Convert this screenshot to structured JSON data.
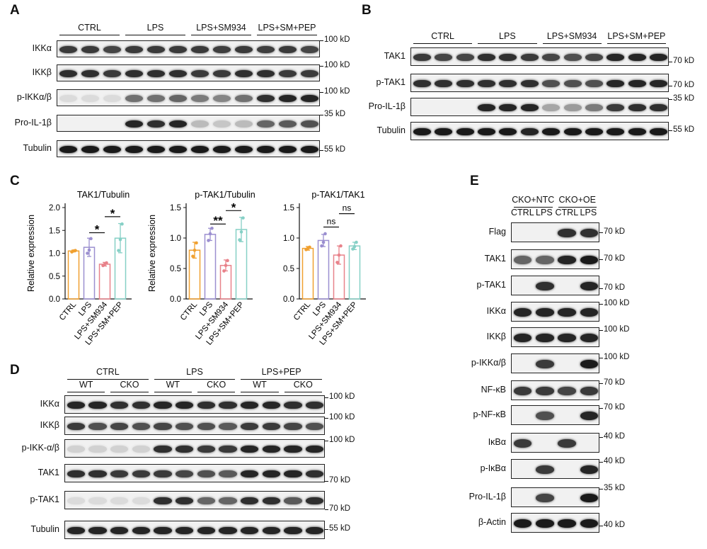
{
  "panels": {
    "A": {
      "letter": "A",
      "groups": [
        "CTRL",
        "LPS",
        "LPS+SM934",
        "LPS+SM+PEP"
      ],
      "rows": [
        {
          "label": "IKKα",
          "marker": "100 kD",
          "intensity": [
            0.8,
            0.8,
            0.75,
            0.8,
            0.8,
            0.8,
            0.8,
            0.78,
            0.8,
            0.78,
            0.8,
            0.75
          ]
        },
        {
          "label": "IKKβ",
          "marker": "100 kD",
          "intensity": [
            0.85,
            0.85,
            0.8,
            0.85,
            0.85,
            0.85,
            0.8,
            0.8,
            0.85,
            0.85,
            0.8,
            0.8
          ]
        },
        {
          "label": "p-IKKα/β",
          "marker": "100 kD",
          "intensity": [
            0.05,
            0.05,
            0.05,
            0.55,
            0.55,
            0.6,
            0.5,
            0.45,
            0.55,
            0.85,
            0.9,
            0.9
          ]
        },
        {
          "label": "Pro-IL-1β",
          "marker": "35 kD",
          "intensity": [
            0.0,
            0.0,
            0.0,
            0.9,
            0.85,
            0.9,
            0.2,
            0.15,
            0.2,
            0.6,
            0.65,
            0.7
          ]
        },
        {
          "label": "Tubulin",
          "marker": "55 kD",
          "intensity": [
            0.95,
            0.95,
            0.95,
            0.95,
            0.95,
            0.95,
            0.95,
            0.95,
            0.95,
            0.95,
            0.95,
            0.95
          ]
        }
      ]
    },
    "B": {
      "letter": "B",
      "groups": [
        "CTRL",
        "LPS",
        "LPS+SM934",
        "LPS+SM+PEP"
      ],
      "rows": [
        {
          "label": "TAK1",
          "marker": "70 kD",
          "intensity": [
            0.8,
            0.75,
            0.75,
            0.85,
            0.85,
            0.8,
            0.75,
            0.7,
            0.75,
            0.9,
            0.9,
            0.9
          ]
        },
        {
          "label": "p-TAK1",
          "marker": "70 kD",
          "intensity": [
            0.85,
            0.85,
            0.85,
            0.85,
            0.85,
            0.85,
            0.7,
            0.7,
            0.7,
            0.9,
            0.9,
            0.9
          ]
        },
        {
          "label": "Pro-IL-1β",
          "marker": "35 kD",
          "intensity": [
            0.0,
            0.0,
            0.0,
            0.9,
            0.9,
            0.9,
            0.3,
            0.35,
            0.5,
            0.8,
            0.85,
            0.85
          ]
        },
        {
          "label": "Tubulin",
          "marker": "55 kD",
          "intensity": [
            0.95,
            0.95,
            0.95,
            0.95,
            0.95,
            0.9,
            0.95,
            0.95,
            0.95,
            0.95,
            0.95,
            0.95
          ]
        }
      ]
    },
    "C": {
      "letter": "C",
      "charts": [
        {
          "title": "TAK1/Tubulin",
          "ylabel": "Relative expression",
          "ylim": [
            0,
            2.0
          ],
          "yticks": [
            "0.0",
            "0.5",
            "1.0",
            "1.5",
            "2.0"
          ],
          "categories": [
            "CTRL",
            "LPS",
            "LPS+SM934",
            "LPS+SM+PEP"
          ],
          "values": [
            1.05,
            1.13,
            0.76,
            1.33
          ],
          "errors": [
            0.02,
            0.2,
            0.04,
            0.32
          ],
          "points": [
            [
              1.03,
              1.05,
              1.06
            ],
            [
              1.0,
              1.07,
              1.32
            ],
            [
              0.73,
              0.76,
              0.79
            ],
            [
              1.06,
              1.3,
              1.64
            ]
          ],
          "sig": [
            {
              "from": 1,
              "to": 2,
              "label": "*",
              "y": 1.45
            },
            {
              "from": 2,
              "to": 3,
              "label": "*",
              "y": 1.8
            }
          ]
        },
        {
          "title": "p-TAK1/Tubulin",
          "ylabel": "Relative expression",
          "ylim": [
            0,
            1.5
          ],
          "yticks": [
            "0.0",
            "0.5",
            "1.0",
            "1.5"
          ],
          "categories": [
            "CTRL",
            "LPS",
            "LPS+SM934",
            "LPS+SM+PEP"
          ],
          "values": [
            0.8,
            1.06,
            0.55,
            1.14
          ],
          "errors": [
            0.13,
            0.1,
            0.09,
            0.2
          ],
          "points": [
            [
              0.7,
              0.8,
              0.92
            ],
            [
              0.96,
              1.07,
              1.16
            ],
            [
              0.46,
              0.55,
              0.63
            ],
            [
              0.97,
              1.1,
              1.33
            ]
          ],
          "sig": [
            {
              "from": 1,
              "to": 2,
              "label": "**",
              "y": 1.23
            },
            {
              "from": 2,
              "to": 3,
              "label": "*",
              "y": 1.45
            }
          ]
        },
        {
          "title": "p-TAK1/TAK1",
          "ylabel": "",
          "ylim": [
            0,
            1.5
          ],
          "yticks": [
            "0.0",
            "0.5",
            "1.0",
            "1.5"
          ],
          "categories": [
            "CTRL",
            "LPS",
            "LPS+SM934",
            "LPS+SM+PEP"
          ],
          "values": [
            0.83,
            0.96,
            0.72,
            0.87
          ],
          "errors": [
            0.03,
            0.1,
            0.15,
            0.06
          ],
          "points": [
            [
              0.81,
              0.83,
              0.85
            ],
            [
              0.87,
              0.93,
              1.07
            ],
            [
              0.6,
              0.72,
              0.87
            ],
            [
              0.82,
              0.86,
              0.93
            ]
          ],
          "sig": [
            {
              "from": 1,
              "to": 2,
              "label": "ns",
              "y": 1.18
            },
            {
              "from": 2,
              "to": 3,
              "label": "ns",
              "y": 1.4
            }
          ]
        }
      ],
      "colors": [
        "#f0a030",
        "#9b8fd0",
        "#e8828a",
        "#86d0c6"
      ]
    },
    "D": {
      "letter": "D",
      "groups": [
        "CTRL",
        "LPS",
        "LPS+PEP"
      ],
      "subgroups": [
        "WT",
        "CKO",
        "WT",
        "CKO",
        "WT",
        "CKO"
      ],
      "rows": [
        {
          "label": "IKKα",
          "marker": "100 kD",
          "intensity": [
            0.9,
            0.9,
            0.85,
            0.85,
            0.9,
            0.9,
            0.85,
            0.85,
            0.9,
            0.9,
            0.85,
            0.85
          ]
        },
        {
          "label": "IKKβ",
          "marker": "100 kD",
          "intensity": [
            0.8,
            0.7,
            0.75,
            0.7,
            0.75,
            0.7,
            0.7,
            0.65,
            0.8,
            0.8,
            0.75,
            0.7
          ]
        },
        {
          "label": "p-IKK-α/β",
          "marker": "100 kD",
          "intensity": [
            0.1,
            0.1,
            0.1,
            0.1,
            0.85,
            0.85,
            0.8,
            0.8,
            0.9,
            0.9,
            0.9,
            0.9
          ]
        },
        {
          "label": "TAK1",
          "marker": "70 kD",
          "intensity": [
            0.85,
            0.85,
            0.8,
            0.8,
            0.8,
            0.75,
            0.7,
            0.65,
            0.9,
            0.9,
            0.9,
            0.85
          ]
        },
        {
          "label": "p-TAK1",
          "marker": "70 kD",
          "intensity": [
            0.05,
            0.05,
            0.05,
            0.05,
            0.85,
            0.85,
            0.6,
            0.6,
            0.85,
            0.85,
            0.65,
            0.85
          ]
        },
        {
          "label": "Tubulin",
          "marker": "55 kD",
          "intensity": [
            0.9,
            0.9,
            0.9,
            0.9,
            0.9,
            0.9,
            0.9,
            0.9,
            0.9,
            0.9,
            0.9,
            0.9
          ]
        }
      ]
    },
    "E": {
      "letter": "E",
      "groups": [
        "CKO+NTC",
        "CKO+OE"
      ],
      "subgroups": [
        "CTRL",
        "LPS",
        "CTRL",
        "LPS"
      ],
      "rows": [
        {
          "label": "Flag",
          "marker": "70 kD",
          "intensity": [
            0.0,
            0.0,
            0.85,
            0.85
          ]
        },
        {
          "label": "TAK1",
          "marker": "70 kD",
          "intensity": [
            0.6,
            0.6,
            0.9,
            0.95
          ]
        },
        {
          "label": "p-TAK1",
          "marker": "70 kD",
          "intensity": [
            0.0,
            0.85,
            0.0,
            0.9
          ]
        },
        {
          "label": "IKKα",
          "marker": "100 kD",
          "intensity": [
            0.9,
            0.9,
            0.9,
            0.9
          ]
        },
        {
          "label": "IKKβ",
          "marker": "100 kD",
          "intensity": [
            0.9,
            0.9,
            0.9,
            0.9
          ]
        },
        {
          "label": "p-IKKα/β",
          "marker": "100 kD",
          "intensity": [
            0.0,
            0.8,
            0.0,
            0.95
          ]
        },
        {
          "label": "NF-κB",
          "marker": "70 kD",
          "intensity": [
            0.8,
            0.8,
            0.75,
            0.8
          ]
        },
        {
          "label": "p-NF-κB",
          "marker": "70 kD",
          "intensity": [
            0.0,
            0.7,
            0.0,
            0.9
          ]
        },
        {
          "label": "IκBα",
          "marker": "40 kD",
          "intensity": [
            0.8,
            0.0,
            0.8,
            0.0
          ]
        },
        {
          "label": "p-IκBα",
          "marker": "40 kD",
          "intensity": [
            0.0,
            0.8,
            0.0,
            0.9
          ]
        },
        {
          "label": "Pro-IL-1β",
          "marker": "35 kD",
          "intensity": [
            0.0,
            0.75,
            0.0,
            0.95
          ]
        },
        {
          "label": "β-Actin",
          "marker": "40 kD",
          "intensity": [
            0.95,
            0.95,
            0.95,
            0.95
          ]
        }
      ]
    }
  }
}
